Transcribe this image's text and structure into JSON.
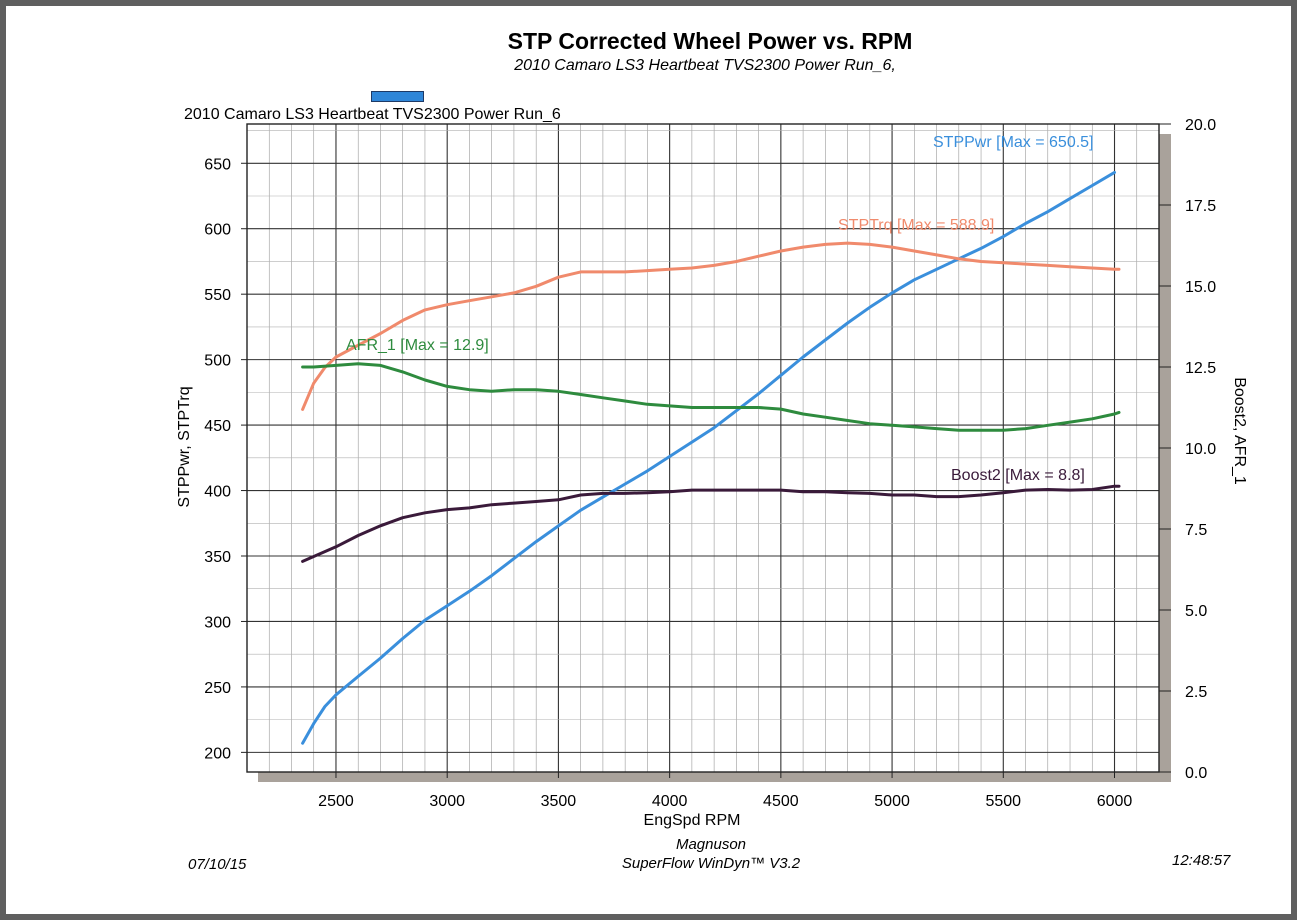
{
  "chart_data": {
    "type": "line",
    "title": "STP Corrected Wheel Power vs. RPM",
    "subtitle": "2010 Camaro LS3 Heartbeat TVS2300 Power Run_6,",
    "run_name": "2010 Camaro LS3 Heartbeat TVS2300 Power Run_6",
    "xlabel": "EngSpd RPM",
    "ylabel_left": "STPPwr, STPTrq",
    "ylabel_right": "Boost2, AFR_1",
    "xlim": [
      2100,
      6200
    ],
    "ylim_left": [
      185,
      680
    ],
    "ylim_right": [
      0,
      20
    ],
    "x_ticks": [
      2500,
      3000,
      3500,
      4000,
      4500,
      5000,
      5500,
      6000
    ],
    "y_left_ticks": [
      200,
      250,
      300,
      350,
      400,
      450,
      500,
      550,
      600,
      650
    ],
    "y_right_ticks": [
      "0.0",
      "2.5",
      "5.0",
      "7.5",
      "10.0",
      "12.5",
      "15.0",
      "17.5",
      "20.0"
    ],
    "grid": true,
    "series": [
      {
        "name": "STPPwr",
        "axis": "left",
        "color": "#3a8fdc",
        "label": "STPPwr [Max = 650.5]",
        "x": [
          2350,
          2400,
          2450,
          2500,
          2600,
          2700,
          2800,
          2900,
          3000,
          3100,
          3200,
          3300,
          3400,
          3500,
          3600,
          3700,
          3800,
          3900,
          4000,
          4100,
          4200,
          4300,
          4400,
          4500,
          4600,
          4700,
          4800,
          4900,
          5000,
          5100,
          5200,
          5300,
          5400,
          5500,
          5600,
          5700,
          5800,
          5900,
          6000
        ],
        "y": [
          207,
          222,
          235,
          244,
          258,
          272,
          287,
          301,
          312,
          323,
          335,
          348,
          361,
          373,
          385,
          395,
          405,
          415,
          426,
          437,
          448,
          461,
          474,
          488,
          502,
          515,
          528,
          540,
          551,
          561,
          569,
          577,
          585,
          594,
          604,
          613,
          623,
          633,
          643
        ]
      },
      {
        "name": "STPTrq",
        "axis": "left",
        "color": "#f08a6c",
        "label": "STPTrq [Max = 588.9]",
        "x": [
          2350,
          2400,
          2450,
          2500,
          2600,
          2700,
          2800,
          2900,
          3000,
          3100,
          3200,
          3300,
          3400,
          3500,
          3600,
          3700,
          3800,
          3900,
          4000,
          4100,
          4200,
          4300,
          4400,
          4500,
          4600,
          4700,
          4800,
          4900,
          5000,
          5100,
          5200,
          5300,
          5400,
          5500,
          5600,
          5700,
          5800,
          5900,
          6000,
          6020
        ],
        "y": [
          462,
          482,
          494,
          502,
          511,
          520,
          530,
          538,
          542,
          545,
          548,
          551,
          556,
          563,
          567,
          567,
          567,
          568,
          569,
          570,
          572,
          575,
          579,
          583,
          586,
          588,
          589,
          588,
          586,
          583,
          580,
          577,
          575,
          574,
          573,
          572,
          571,
          570,
          569,
          569
        ]
      },
      {
        "name": "AFR_1",
        "axis": "right",
        "color": "#2e8b3e",
        "label": "AFR_1 [Max = 12.9]",
        "x": [
          2350,
          2400,
          2500,
          2600,
          2700,
          2800,
          2900,
          3000,
          3100,
          3200,
          3300,
          3400,
          3500,
          3600,
          3700,
          3800,
          3900,
          4000,
          4100,
          4200,
          4300,
          4400,
          4500,
          4600,
          4700,
          4800,
          4900,
          5000,
          5100,
          5200,
          5300,
          5400,
          5500,
          5600,
          5700,
          5800,
          5900,
          6000,
          6020
        ],
        "y": [
          12.5,
          12.5,
          12.55,
          12.6,
          12.55,
          12.35,
          12.1,
          11.9,
          11.8,
          11.75,
          11.8,
          11.8,
          11.75,
          11.65,
          11.55,
          11.45,
          11.35,
          11.3,
          11.25,
          11.25,
          11.25,
          11.25,
          11.2,
          11.05,
          10.95,
          10.85,
          10.75,
          10.7,
          10.65,
          10.6,
          10.55,
          10.55,
          10.55,
          10.6,
          10.7,
          10.8,
          10.9,
          11.05,
          11.1
        ]
      },
      {
        "name": "Boost2",
        "axis": "right",
        "color": "#3a1a3a",
        "label": "Boost2 [Max = 8.8]",
        "x": [
          2350,
          2400,
          2500,
          2600,
          2700,
          2800,
          2900,
          3000,
          3100,
          3200,
          3300,
          3400,
          3500,
          3600,
          3700,
          3800,
          3900,
          4000,
          4100,
          4200,
          4300,
          4400,
          4500,
          4600,
          4700,
          4800,
          4900,
          5000,
          5100,
          5200,
          5300,
          5400,
          5500,
          5600,
          5700,
          5800,
          5900,
          6000,
          6020
        ],
        "y": [
          6.5,
          6.65,
          6.95,
          7.3,
          7.6,
          7.85,
          8.0,
          8.1,
          8.15,
          8.25,
          8.3,
          8.35,
          8.4,
          8.55,
          8.6,
          8.6,
          8.62,
          8.65,
          8.7,
          8.7,
          8.7,
          8.7,
          8.7,
          8.65,
          8.65,
          8.62,
          8.6,
          8.55,
          8.55,
          8.5,
          8.5,
          8.55,
          8.62,
          8.7,
          8.72,
          8.7,
          8.72,
          8.82,
          8.82
        ]
      }
    ]
  },
  "footer": {
    "date": "07/10/15",
    "maker": "Magnuson",
    "software": "SuperFlow WinDyn™ V3.2",
    "time": "12:48:57"
  }
}
